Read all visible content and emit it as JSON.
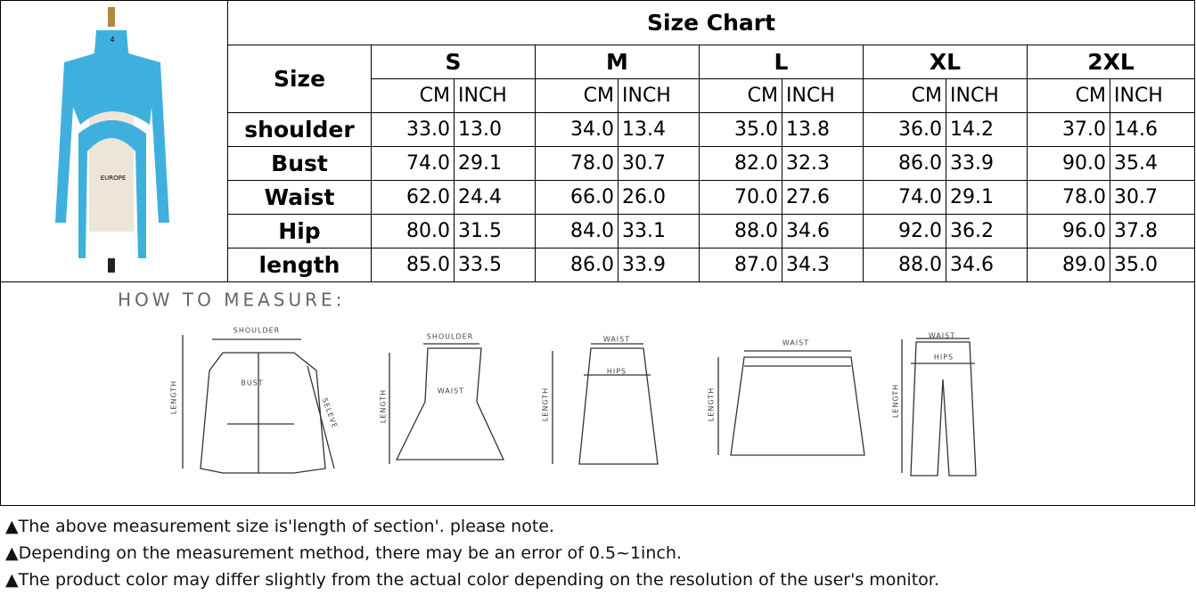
{
  "product_image": {
    "stand_label": "4",
    "brand_label": "EUROPE"
  },
  "table": {
    "title": "Size Chart",
    "size_header": "Size",
    "sizes": [
      "S",
      "M",
      "L",
      "XL",
      "2XL"
    ],
    "units": [
      "CM",
      "INCH"
    ],
    "rows": [
      {
        "label": "shoulder",
        "cells": [
          "33.0",
          "13.0",
          "34.0",
          "13.4",
          "35.0",
          "13.8",
          "36.0",
          "14.2",
          "37.0",
          "14.6"
        ]
      },
      {
        "label": "Bust",
        "cells": [
          "74.0",
          "29.1",
          "78.0",
          "30.7",
          "82.0",
          "32.3",
          "86.0",
          "33.9",
          "90.0",
          "35.4"
        ]
      },
      {
        "label": "Waist",
        "cells": [
          "62.0",
          "24.4",
          "66.0",
          "26.0",
          "70.0",
          "27.6",
          "74.0",
          "29.1",
          "78.0",
          "30.7"
        ]
      },
      {
        "label": "Hip",
        "cells": [
          "80.0",
          "31.5",
          "84.0",
          "33.1",
          "88.0",
          "34.6",
          "92.0",
          "36.2",
          "96.0",
          "37.8"
        ]
      },
      {
        "label": "length",
        "cells": [
          "85.0",
          "33.5",
          "86.0",
          "33.9",
          "87.0",
          "34.3",
          "88.0",
          "34.6",
          "89.0",
          "35.0"
        ]
      }
    ]
  },
  "measure": {
    "title": "HOW TO MEASURE:",
    "figures": [
      {
        "labels": [
          "SHOULDER",
          "BUST",
          "LENGTH",
          "SELEVE"
        ]
      },
      {
        "labels": [
          "SHOULDER",
          "WAIST",
          "LENGTH"
        ]
      },
      {
        "labels": [
          "WAIST",
          "HIPS",
          "LENGTH"
        ]
      },
      {
        "labels": [
          "WAIST",
          "LENGTH"
        ]
      },
      {
        "labels": [
          "WAIST",
          "HIPS",
          "LENGTH"
        ]
      }
    ]
  },
  "notes": [
    "▲The above measurement size is'length of section'. please note.",
    "▲Depending on the measurement method, there may be an error of 0.5~1inch.",
    "▲The product color may differ slightly from the actual color depending on the resolution of the user's monitor."
  ]
}
